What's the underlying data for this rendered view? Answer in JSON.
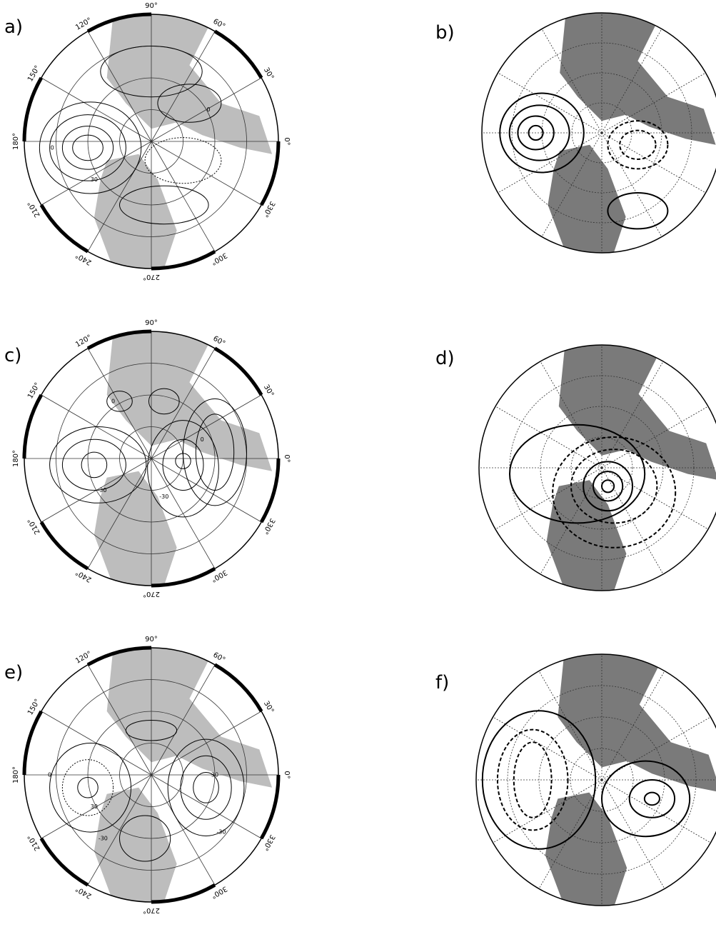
{
  "panels": [
    {
      "label": "a)",
      "lon_labels": [
        "90°",
        "60°",
        "30°",
        "0°",
        "330°",
        "300°",
        "270°",
        "240°",
        "210°",
        "180°",
        "150°",
        "120°"
      ],
      "contour_labels": [
        "0",
        "30",
        "0"
      ]
    },
    {
      "label": "b)"
    },
    {
      "label": "c)",
      "lon_labels": [
        "90°",
        "60°",
        "30°",
        "0°",
        "330°",
        "300°",
        "270°",
        "240°",
        "210°",
        "180°",
        "150°",
        "120°"
      ],
      "contour_labels": [
        "0",
        "30",
        "-30",
        "0"
      ]
    },
    {
      "label": "d)"
    },
    {
      "label": "e)",
      "lon_labels": [
        "90°",
        "60°",
        "30°",
        "0°",
        "330°",
        "300°",
        "270°",
        "240°",
        "210°",
        "180°",
        "150°",
        "120°"
      ],
      "contour_labels": [
        "0",
        "30",
        "-30",
        "-30",
        "30"
      ]
    },
    {
      "label": "f)"
    }
  ]
}
